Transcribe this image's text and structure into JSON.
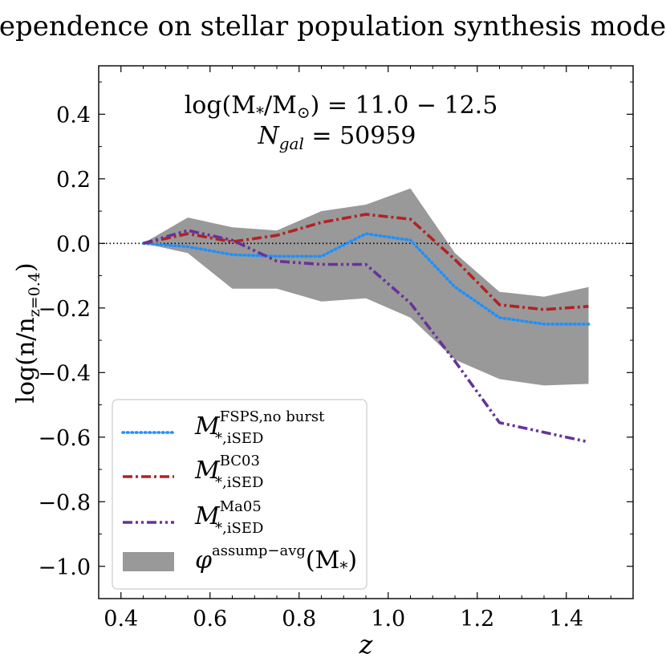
{
  "chart_data": {
    "type": "line",
    "title": "Dependence on stellar population synthesis models",
    "xlabel": "z",
    "ylabel": "log(n/n",
    "ylabel_sub": "z=0.4",
    "ylabel_close": ")",
    "xlim": [
      0.35,
      1.55
    ],
    "ylim": [
      -1.1,
      0.55
    ],
    "xticks": [
      0.4,
      0.6,
      0.8,
      1.0,
      1.2,
      1.4
    ],
    "xtick_labels": [
      "0.4",
      "0.6",
      "0.8",
      "1.0",
      "1.2",
      "1.4"
    ],
    "yticks": [
      0.4,
      0.2,
      0.0,
      -0.2,
      -0.4,
      -0.6,
      -0.8,
      -1.0
    ],
    "ytick_labels": [
      "0.4",
      "0.2",
      "0.0",
      "−0.2",
      "−0.4",
      "−0.6",
      "−0.8",
      "−1.0"
    ],
    "reference_line": 0.0,
    "annotation": {
      "mass_prefix": "log(M",
      "mass_sub1": "*",
      "mass_mid": "/M",
      "mass_sub2": "⊙",
      "mass_suffix": ") = 11.0 − 12.5",
      "ngal_prefix": "N",
      "ngal_sub": "gal",
      "ngal_suffix": " = 50959"
    },
    "x": [
      0.45,
      0.55,
      0.65,
      0.75,
      0.85,
      0.95,
      1.05,
      1.15,
      1.25,
      1.35,
      1.45
    ],
    "band": {
      "name": "phi assump-avg (M*)",
      "label_main": "φ",
      "label_sup": "assump−avg",
      "label_tail": "(M",
      "label_sub": "*",
      "label_close": ")",
      "color": "#999999",
      "upper": [
        0.0,
        0.08,
        0.05,
        0.04,
        0.1,
        0.12,
        0.17,
        -0.03,
        -0.15,
        -0.165,
        -0.135
      ],
      "lower": [
        0.0,
        -0.03,
        -0.14,
        -0.14,
        -0.18,
        -0.17,
        -0.23,
        -0.36,
        -0.42,
        -0.44,
        -0.435
      ]
    },
    "series": [
      {
        "name": "M* iSED FSPS,no burst",
        "label_main": "M",
        "label_sup": "FSPS,no burst",
        "label_sub": "*,iSED",
        "color": "#1e90ff",
        "style": "dotted",
        "values": [
          0.0,
          -0.01,
          -0.035,
          -0.04,
          -0.04,
          0.03,
          0.01,
          -0.135,
          -0.23,
          -0.25,
          -0.25
        ]
      },
      {
        "name": "M* iSED BC03",
        "label_main": "M",
        "label_sup": "BC03",
        "label_sub": "*,iSED",
        "color": "#b22222",
        "style": "dashdot",
        "values": [
          0.0,
          0.03,
          0.005,
          0.025,
          0.065,
          0.09,
          0.075,
          -0.05,
          -0.19,
          -0.205,
          -0.195
        ]
      },
      {
        "name": "M* iSED Ma05",
        "label_main": "M",
        "label_sup": "Ma05",
        "label_sub": "*,iSED",
        "color": "#663399",
        "style": "dashdotdot",
        "values": [
          0.0,
          0.04,
          0.01,
          -0.055,
          -0.065,
          -0.065,
          -0.185,
          -0.365,
          -0.555,
          -0.585,
          -0.615
        ]
      }
    ]
  }
}
